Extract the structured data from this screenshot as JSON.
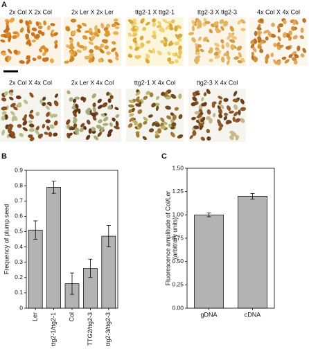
{
  "panel_a": {
    "label": "A",
    "row1": [
      "2x  Col X 2x Col",
      "2x Ler X 2x Ler",
      "ttg2-1 X ttg2-1",
      "ttg2-3 X ttg2-3",
      "4x Col X 4x Col"
    ],
    "row2": [
      "2x  Col X 4x Col",
      "2x Ler X 4x Col",
      "ttg2-1 X 4x Col",
      "ttg2-3 X 4x Col"
    ]
  },
  "chart_data": [
    {
      "type": "bar",
      "label": "B",
      "ylabel": "Frequency of plump seed",
      "categories": [
        "Ler",
        "ttg2-1/ttg2-1",
        "Col",
        "TTG2/ttg2-3",
        "ttg2-3/ttg2-3"
      ],
      "values": [
        0.51,
        0.79,
        0.16,
        0.26,
        0.47
      ],
      "errors": [
        0.06,
        0.04,
        0.07,
        0.06,
        0.07
      ],
      "color": "#b3b3b3",
      "ylim": [
        0,
        0.9
      ],
      "yticks": [
        0,
        0.1,
        0.2,
        0.3,
        0.4,
        0.5,
        0.6,
        0.7,
        0.8,
        0.9
      ]
    },
    {
      "type": "bar",
      "label": "C",
      "ylabel": [
        "Fluorescence amplitude of Col/Ler",
        "(arbitrary units)"
      ],
      "categories": [
        "gDNA",
        "cDNA"
      ],
      "values": [
        1.0,
        1.2
      ],
      "errors": [
        0.02,
        0.03
      ],
      "color": "#b3b3b3",
      "ylim": [
        0,
        1.5
      ],
      "yticks": [
        {
          "value": 0,
          "label": "0.00"
        },
        {
          "value": 0.25,
          "label": "0.25"
        },
        {
          "value": 0.5,
          "label": "0.50"
        },
        {
          "value": 0.75,
          "label": "0.75"
        },
        {
          "value": 1,
          "label": "1.00"
        },
        {
          "value": 1.25,
          "label": "1.25"
        },
        {
          "value": 1.5,
          "label": "1.50"
        }
      ]
    }
  ]
}
